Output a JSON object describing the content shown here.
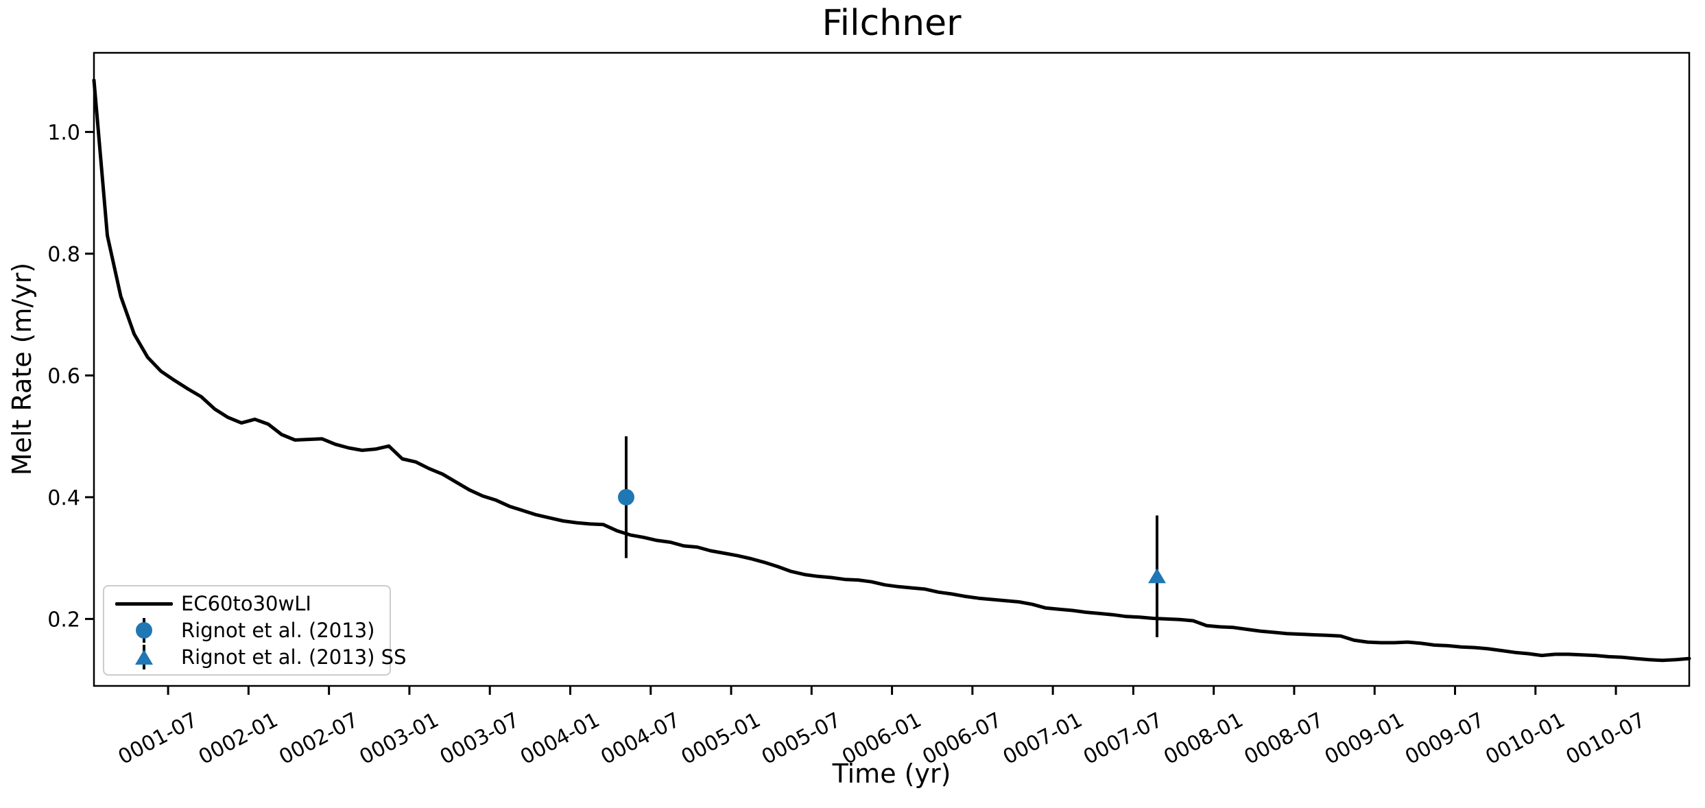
{
  "figure": {
    "background": "#ffffff",
    "frame_color": "#000000"
  },
  "chart_data": {
    "type": "line",
    "title": "Filchner",
    "xlabel": "Time (yr)",
    "ylabel": "Melt Rate (m/yr)",
    "grid": false,
    "legend_position": "lower-left",
    "ylim": [
      0.09,
      1.13
    ],
    "y_ticks": [
      0.2,
      0.4,
      0.6,
      0.8,
      1.0
    ],
    "y_tick_labels": [
      "0.2",
      "0.4",
      "0.6",
      "0.8",
      "1.0"
    ],
    "x_axis": {
      "units": "months since year 0001-01 (mid-month samples)",
      "start_month": 0,
      "end_month": 119,
      "first_tick_month": 5.53,
      "tick_step_months": 6
    },
    "x_tick_labels": [
      "0001-07",
      "0002-01",
      "0002-07",
      "0003-01",
      "0003-07",
      "0004-01",
      "0004-07",
      "0005-01",
      "0005-07",
      "0006-01",
      "0006-07",
      "0007-01",
      "0007-07",
      "0008-01",
      "0008-07",
      "0009-01",
      "0009-07",
      "0010-01",
      "0010-07"
    ],
    "series": [
      {
        "name": "EC60to30wLI",
        "type": "line",
        "color": "#000000",
        "linewidth": 5,
        "monthly_values": [
          1.085,
          0.83,
          0.73,
          0.668,
          0.63,
          0.607,
          0.592,
          0.578,
          0.565,
          0.545,
          0.531,
          0.522,
          0.528,
          0.52,
          0.503,
          0.494,
          0.495,
          0.496,
          0.487,
          0.481,
          0.477,
          0.479,
          0.484,
          0.463,
          0.458,
          0.447,
          0.438,
          0.425,
          0.412,
          0.402,
          0.395,
          0.385,
          0.378,
          0.371,
          0.366,
          0.361,
          0.358,
          0.356,
          0.355,
          0.345,
          0.338,
          0.334,
          0.329,
          0.326,
          0.32,
          0.318,
          0.312,
          0.308,
          0.304,
          0.299,
          0.293,
          0.286,
          0.278,
          0.273,
          0.27,
          0.268,
          0.265,
          0.264,
          0.261,
          0.256,
          0.253,
          0.251,
          0.249,
          0.244,
          0.241,
          0.237,
          0.234,
          0.232,
          0.23,
          0.228,
          0.224,
          0.218,
          0.216,
          0.214,
          0.211,
          0.209,
          0.207,
          0.204,
          0.203,
          0.201,
          0.2,
          0.199,
          0.197,
          0.189,
          0.187,
          0.186,
          0.183,
          0.18,
          0.178,
          0.176,
          0.175,
          0.174,
          0.173,
          0.172,
          0.165,
          0.162,
          0.161,
          0.161,
          0.162,
          0.16,
          0.157,
          0.156,
          0.154,
          0.153,
          0.151,
          0.148,
          0.145,
          0.143,
          0.14,
          0.142,
          0.142,
          0.141,
          0.14,
          0.138,
          0.137,
          0.135,
          0.133,
          0.132,
          0.133,
          0.135
        ]
      },
      {
        "name": "Rignot et al. (2013)",
        "type": "scatter",
        "marker": "circle",
        "color": "#1f77b4",
        "errorbar_color": "#000000",
        "points": [
          {
            "month": 39.7,
            "time": "0004-05",
            "value": 0.4,
            "error": 0.1
          }
        ]
      },
      {
        "name": "Rignot et al. (2013) SS",
        "type": "scatter",
        "marker": "triangle-up",
        "color": "#1f77b4",
        "errorbar_color": "#000000",
        "points": [
          {
            "month": 79.3,
            "time": "0007-08",
            "value": 0.27,
            "error": 0.1
          }
        ]
      }
    ]
  }
}
